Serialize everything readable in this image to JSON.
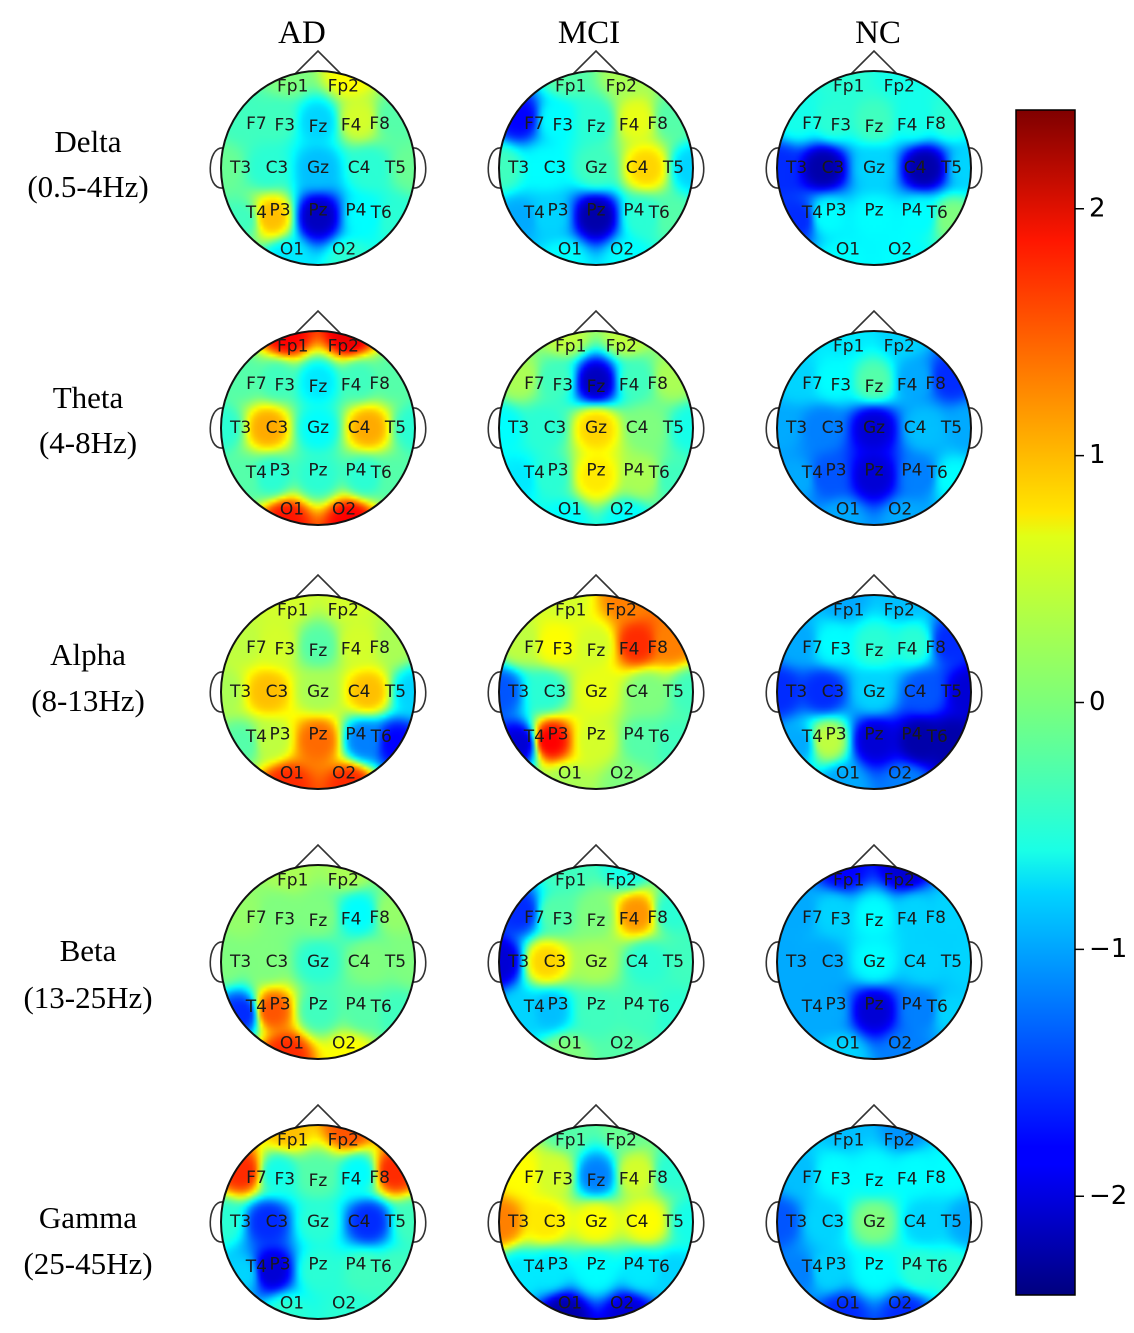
{
  "chart_data": {
    "type": "heatmap",
    "columns": [
      "AD",
      "MCI",
      "NC"
    ],
    "rows": [
      {
        "name": "Delta",
        "range": "(0.5-4Hz)"
      },
      {
        "name": "Theta",
        "range": "(4-8Hz)"
      },
      {
        "name": "Alpha",
        "range": "(8-13Hz)"
      },
      {
        "name": "Beta",
        "range": "(13-25Hz)"
      },
      {
        "name": "Gamma",
        "range": "(25-45Hz)"
      }
    ],
    "electrodes": [
      "Fp1",
      "Fp2",
      "F7",
      "F3",
      "Fz",
      "F4",
      "F8",
      "T3",
      "C3",
      "Gz",
      "C4",
      "T5",
      "T4",
      "P3",
      "Pz",
      "P4",
      "T6",
      "O1",
      "O2"
    ],
    "colorbar": {
      "min": -2.4,
      "max": 2.4,
      "ticks": [
        2,
        1,
        0,
        -1,
        -2
      ],
      "tick_labels": [
        "2",
        "1",
        "0",
        "−1",
        "−2"
      ],
      "colormap": "jet"
    },
    "values": [
      [
        [
          0.0,
          0.6,
          -0.3,
          -0.3,
          -0.8,
          0.4,
          -0.2,
          -0.1,
          -0.4,
          -0.9,
          -0.4,
          -0.1,
          -0.3,
          0.9,
          -2.1,
          -0.6,
          -0.4,
          -0.7,
          -0.4
        ],
        [
          -0.2,
          0.2,
          -1.8,
          -0.6,
          -0.4,
          0.5,
          -0.2,
          -0.3,
          -0.6,
          -0.3,
          0.8,
          -0.8,
          -1.0,
          -0.8,
          -2.2,
          -0.4,
          -0.2,
          -0.6,
          -0.6
        ],
        [
          -0.4,
          -0.5,
          -0.5,
          -0.4,
          -0.3,
          -0.5,
          -0.4,
          -1.6,
          -2.2,
          -0.8,
          -2.2,
          -0.8,
          -1.6,
          -0.6,
          -0.6,
          -0.6,
          0.0,
          -0.6,
          -0.6
        ]
      ],
      [
        [
          1.8,
          1.9,
          -0.2,
          -0.3,
          -0.7,
          -0.3,
          -0.2,
          -0.4,
          1.0,
          -0.6,
          1.0,
          -0.4,
          -0.2,
          -0.4,
          -0.4,
          -0.4,
          -0.2,
          1.7,
          1.8
        ],
        [
          0.3,
          0.3,
          0.2,
          -0.3,
          -2.1,
          -0.3,
          0.2,
          -0.6,
          -0.4,
          0.8,
          0.0,
          -0.5,
          -0.7,
          -0.4,
          0.7,
          0.2,
          -0.3,
          -0.6,
          -0.6
        ],
        [
          -0.7,
          -0.8,
          -0.8,
          -0.6,
          -0.2,
          -1.0,
          -1.6,
          -1.0,
          -1.2,
          -2.0,
          -0.9,
          -1.0,
          -1.0,
          -1.4,
          -2.0,
          -1.2,
          -0.6,
          -1.0,
          -1.0
        ]
      ],
      [
        [
          0.4,
          0.4,
          0.3,
          0.4,
          -0.2,
          0.4,
          0.2,
          0.2,
          0.9,
          0.2,
          0.9,
          -0.8,
          -0.2,
          0.3,
          1.3,
          -1.2,
          -1.8,
          1.6,
          1.6
        ],
        [
          0.4,
          1.2,
          0.3,
          0.6,
          0.4,
          1.6,
          1.2,
          -1.4,
          -0.4,
          0.5,
          0.0,
          -0.3,
          -2.0,
          1.8,
          0.4,
          -0.2,
          -0.3,
          0.2,
          0.0
        ],
        [
          -1.0,
          -0.9,
          -1.0,
          -0.6,
          -0.4,
          -0.4,
          -1.6,
          -1.6,
          -1.6,
          -0.8,
          -1.4,
          -2.0,
          -1.0,
          0.3,
          -2.0,
          -2.2,
          -2.2,
          -1.0,
          -1.2
        ]
      ],
      [
        [
          0.2,
          0.2,
          0.1,
          0.0,
          0.0,
          -0.6,
          0.1,
          0.0,
          0.0,
          -0.4,
          0.0,
          0.0,
          -1.6,
          1.4,
          -0.3,
          -0.2,
          -0.3,
          1.6,
          0.6
        ],
        [
          -0.3,
          -0.5,
          -1.6,
          -0.2,
          0.0,
          1.1,
          -0.4,
          -2.0,
          0.8,
          0.2,
          -0.4,
          -0.3,
          -0.8,
          -0.9,
          -0.3,
          -0.3,
          -0.4,
          0.0,
          -0.2
        ],
        [
          -1.8,
          -2.0,
          -1.0,
          -0.8,
          -0.6,
          -0.8,
          -0.8,
          -1.0,
          -1.0,
          -0.6,
          -0.8,
          -0.8,
          -1.0,
          -1.0,
          -2.0,
          -1.2,
          -0.8,
          -0.8,
          -1.2
        ]
      ],
      [
        [
          0.9,
          1.4,
          1.6,
          -0.5,
          -0.2,
          -0.6,
          1.6,
          -0.4,
          -1.6,
          -0.4,
          -1.6,
          -0.3,
          -0.8,
          -2.0,
          -0.4,
          -0.3,
          -0.3,
          -0.4,
          -0.4
        ],
        [
          -0.2,
          -0.1,
          0.6,
          0.4,
          -1.2,
          0.4,
          -0.4,
          1.2,
          0.7,
          0.6,
          0.6,
          -0.5,
          -0.7,
          -0.7,
          -0.6,
          -0.7,
          -0.8,
          -2.2,
          -2.0
        ],
        [
          -0.9,
          -1.1,
          -0.9,
          -0.6,
          -0.6,
          -0.6,
          -0.6,
          -1.4,
          -0.8,
          0.0,
          -0.8,
          -1.0,
          -1.2,
          -0.8,
          -0.6,
          -0.4,
          -0.4,
          -1.6,
          -1.6
        ]
      ]
    ]
  }
}
